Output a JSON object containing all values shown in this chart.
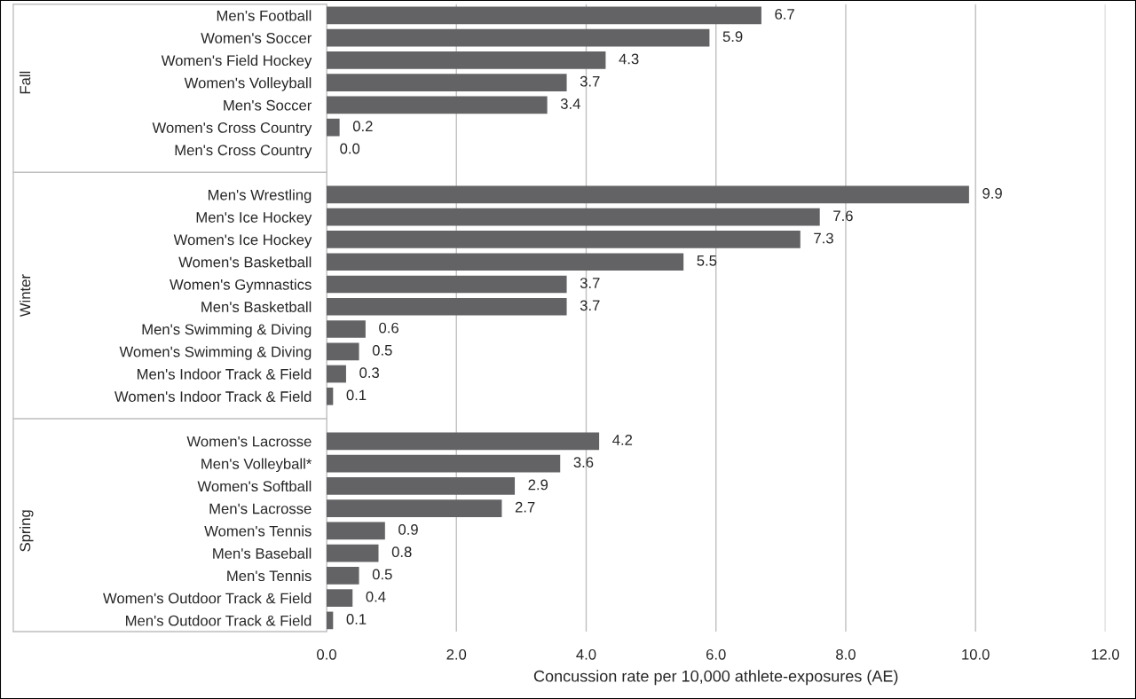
{
  "chart_data": {
    "type": "bar",
    "orientation": "horizontal",
    "xlabel": "Concussion rate per 10,000 athlete-exposures (AE)",
    "categories": [
      "Men's Football",
      "Women's Soccer",
      "Women's Field Hockey",
      "Women's Volleyball",
      "Men's Soccer",
      "Women's Cross Country",
      "Men's Cross Country",
      null,
      "Men's Wrestling",
      "Men's Ice Hockey",
      "Women's Ice Hockey",
      "Women's Basketball",
      "Women's Gymnastics",
      "Men's Basketball",
      "Men's Swimming & Diving",
      "Women's Swimming & Diving",
      "Men's Indoor Track & Field",
      "Women's Indoor Track & Field",
      null,
      "Women's Lacrosse",
      "Men's Volleyball*",
      "Women's Softball",
      "Men's Lacrosse",
      "Women's Tennis",
      "Men's Baseball",
      "Men's Tennis",
      "Women's Outdoor Track & Field",
      "Men's Outdoor Track & Field"
    ],
    "values": [
      6.7,
      5.9,
      4.3,
      3.7,
      3.4,
      0.2,
      0.0,
      null,
      9.9,
      7.6,
      7.3,
      5.5,
      3.7,
      3.7,
      0.6,
      0.5,
      0.3,
      0.1,
      null,
      4.2,
      3.6,
      2.9,
      2.7,
      0.9,
      0.8,
      0.5,
      0.4,
      0.1
    ],
    "value_labels": [
      "6.7",
      "5.9",
      "4.3",
      "3.7",
      "3.4",
      "0.2",
      "0.0",
      null,
      "9.9",
      "7.6",
      "7.3",
      "5.5",
      "3.7",
      "3.7",
      "0.6",
      "0.5",
      "0.3",
      "0.1",
      null,
      "4.2",
      "3.6",
      "2.9",
      "2.7",
      "0.9",
      "0.8",
      "0.5",
      "0.4",
      "0.1"
    ],
    "color": "#636366",
    "xlim": [
      0,
      12
    ],
    "xticks": [
      {
        "value": 0,
        "label": "0.0"
      },
      {
        "value": 2,
        "label": "2.0"
      },
      {
        "value": 4,
        "label": "4.0"
      },
      {
        "value": 6,
        "label": "6.0"
      },
      {
        "value": 8,
        "label": "8.0"
      },
      {
        "value": 10,
        "label": "10.0"
      },
      {
        "value": 12,
        "label": "12.0"
      }
    ],
    "grid": "x",
    "legend": false,
    "annotations": [
      "Fall",
      "Winter",
      "Spring"
    ]
  }
}
